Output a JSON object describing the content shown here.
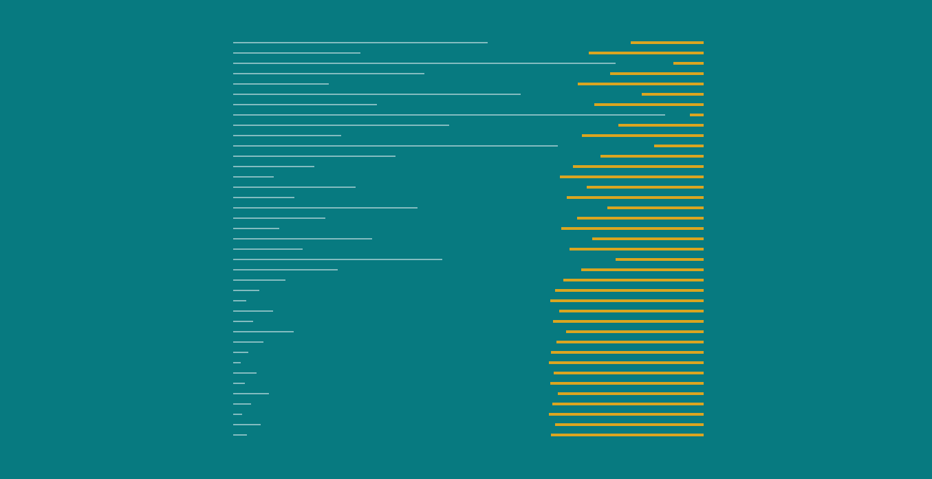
{
  "colors": {
    "background": "#077a80",
    "white_line": "#ffffff",
    "gold_bar": "#daa520"
  },
  "chart_data": {
    "type": "bar",
    "orientation": "horizontal",
    "title": "",
    "xlabel": "",
    "ylabel": "",
    "grid": false,
    "legend": "none",
    "series": [
      {
        "values": [
          370,
          185,
          556,
          278,
          139,
          418,
          209,
          628,
          314,
          157,
          472,
          236,
          118,
          59,
          178,
          89,
          268,
          134,
          67,
          202,
          101,
          304,
          152,
          76,
          38,
          19,
          58,
          29,
          88,
          44,
          22,
          11,
          34,
          17,
          52,
          26,
          13,
          40,
          20
        ]
      },
      {
        "values": [
          106,
          167,
          44,
          136,
          183,
          90,
          159,
          20,
          124,
          177,
          72,
          150,
          190,
          209,
          170,
          199,
          140,
          184,
          207,
          162,
          195,
          128,
          178,
          204,
          216,
          223,
          210,
          219,
          200,
          214,
          222,
          225,
          218,
          223,
          212,
          220,
          225,
          216,
          222
        ]
      }
    ]
  }
}
